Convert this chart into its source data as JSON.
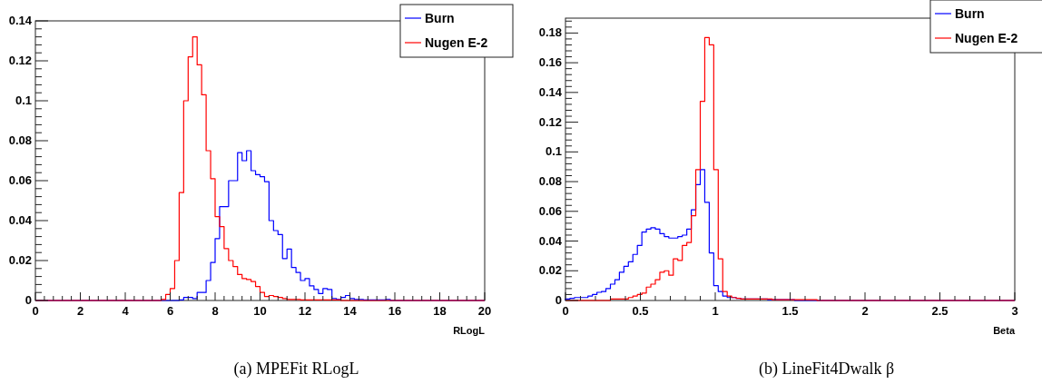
{
  "chart_data": [
    {
      "type": "histogram",
      "title": "(a)  MPEFit RLogL",
      "xlabel": "RLogL",
      "legend": "top right",
      "grid": false,
      "bins": [
        0,
        0.2,
        0.4,
        0.6,
        0.8,
        1,
        1.2,
        1.4,
        1.6,
        1.8,
        2,
        2.2,
        2.4,
        2.6,
        2.8,
        3,
        3.2,
        3.4,
        3.6,
        3.8,
        4,
        4.2,
        4.4,
        4.6,
        4.8,
        5,
        5.2,
        5.4,
        5.6,
        5.8,
        6,
        6.2,
        6.4,
        6.6,
        6.8,
        7,
        7.2,
        7.4,
        7.6,
        7.8,
        8,
        8.2,
        8.4,
        8.6,
        8.8,
        9,
        9.2,
        9.4,
        9.6,
        9.8,
        10,
        10.2,
        10.4,
        10.6,
        10.8,
        11,
        11.2,
        11.4,
        11.6,
        11.8,
        12,
        12.2,
        12.4,
        12.6,
        12.8,
        13,
        13.2,
        13.4,
        13.6,
        13.8,
        14,
        14.2,
        14.4,
        14.6,
        14.8,
        15,
        15.2,
        15.4,
        15.6,
        15.8,
        16,
        16.2,
        16.4,
        16.6,
        16.8,
        17,
        17.2,
        17.4,
        17.6,
        17.8,
        18,
        18.2,
        18.4,
        18.6,
        18.8,
        19,
        19.2,
        19.4,
        19.6,
        19.8,
        20
      ],
      "xlim": [
        0,
        20
      ],
      "xticks": [
        0,
        2,
        4,
        6,
        8,
        10,
        12,
        14,
        16,
        18,
        20
      ],
      "ylim": [
        0,
        0.14
      ],
      "yticks": [
        0,
        0.02,
        0.04,
        0.06,
        0.08,
        0.1,
        0.12,
        0.14
      ],
      "series": [
        {
          "name": "Burn",
          "color": "#0000ff",
          "values": [
            0,
            0,
            0,
            0,
            0,
            0,
            0,
            0,
            0,
            0,
            0,
            0,
            0,
            0,
            0,
            0,
            0,
            0,
            0,
            0,
            0,
            0,
            0,
            0,
            0,
            0,
            0,
            0,
            0,
            0,
            0,
            0,
            0.0003,
            0.0015,
            0.0015,
            0.001,
            0.004,
            0.004,
            0.01,
            0.019,
            0.031,
            0.047,
            0.047,
            0.06,
            0.06,
            0.074,
            0.07,
            0.075,
            0.065,
            0.063,
            0.062,
            0.0595,
            0.04,
            0.035,
            0.033,
            0.021,
            0.0257,
            0.0165,
            0.014,
            0.01,
            0.011,
            0.0073,
            0.0055,
            0.0035,
            0.006,
            0.0055,
            0.001,
            0.0005,
            0.0015,
            0.0025,
            0.001,
            0.0005,
            0.0005,
            0.0003,
            0.0003,
            0.0003,
            0.0003,
            0.0003,
            0.0005,
            0,
            0,
            0,
            0,
            0,
            0,
            0,
            0,
            0,
            0,
            0,
            0,
            0,
            0,
            0,
            0,
            0,
            0,
            0,
            0,
            0
          ]
        },
        {
          "name": "Nugen E-2",
          "color": "#ff0000",
          "values": [
            0,
            0,
            0,
            0,
            0,
            0,
            0,
            0,
            0,
            0,
            0,
            0,
            0,
            0,
            0,
            0,
            0,
            0,
            0,
            0,
            0,
            0,
            0,
            0,
            0,
            0,
            0,
            0,
            0.0005,
            0.003,
            0.006,
            0.02,
            0.054,
            0.1,
            0.122,
            0.132,
            0.118,
            0.103,
            0.075,
            0.061,
            0.042,
            0.037,
            0.026,
            0.02,
            0.017,
            0.013,
            0.011,
            0.0105,
            0.0095,
            0.007,
            0.004,
            0.002,
            0.0025,
            0.002,
            0.0015,
            0.001,
            0.0005,
            0.0005,
            0.0005,
            0.0003,
            0.0003,
            0.0003,
            0.0003,
            0.0003,
            0.0003,
            0.0003,
            0.0003,
            0.0003,
            0,
            0,
            0,
            0,
            0,
            0,
            0,
            0,
            0,
            0,
            0,
            0,
            0,
            0,
            0,
            0,
            0,
            0,
            0,
            0,
            0,
            0,
            0,
            0,
            0,
            0,
            0,
            0,
            0,
            0,
            0,
            0
          ]
        }
      ]
    },
    {
      "type": "histogram",
      "title": "(b)  LineFit4Dwalk β",
      "xlabel": "Beta",
      "legend": "top right",
      "grid": false,
      "bins": [
        0,
        0.03,
        0.06,
        0.09,
        0.12,
        0.15,
        0.18,
        0.21,
        0.24,
        0.27,
        0.3,
        0.33,
        0.36,
        0.39,
        0.42,
        0.45,
        0.48,
        0.51,
        0.54,
        0.57,
        0.6,
        0.63,
        0.66,
        0.69,
        0.72,
        0.75,
        0.78,
        0.81,
        0.84,
        0.87,
        0.9,
        0.93,
        0.96,
        0.99,
        1.02,
        1.05,
        1.08,
        1.11,
        1.14,
        1.17,
        1.2,
        1.23,
        1.26,
        1.29,
        1.32,
        1.35,
        1.38,
        1.41,
        1.44,
        1.47,
        1.5,
        1.53,
        1.56,
        1.59,
        1.62,
        1.65,
        1.68,
        1.71,
        1.74,
        1.77,
        1.8,
        1.83,
        1.86,
        1.89,
        1.92,
        1.95,
        1.98,
        2.01,
        2.04,
        2.07,
        2.1,
        2.13,
        2.16,
        2.19,
        2.22,
        2.25,
        2.28,
        2.31,
        2.34,
        2.37,
        2.4,
        2.43,
        2.46,
        2.49,
        2.52,
        2.55,
        2.58,
        2.61,
        2.64,
        2.67,
        2.7,
        2.73,
        2.76,
        2.79,
        2.82,
        2.85,
        2.88,
        2.91,
        2.94,
        2.97,
        3
      ],
      "xlim": [
        0,
        3
      ],
      "xticks": [
        0,
        0.5,
        1,
        1.5,
        2,
        2.5,
        3
      ],
      "ylim": [
        0,
        0.19
      ],
      "yticks": [
        0,
        0.02,
        0.04,
        0.06,
        0.08,
        0.1,
        0.12,
        0.14,
        0.16,
        0.18
      ],
      "series": [
        {
          "name": "Burn",
          "color": "#0000ff",
          "values": [
            0.001,
            0.0015,
            0.002,
            0.002,
            0.002,
            0.003,
            0.004,
            0.0055,
            0.006,
            0.008,
            0.011,
            0.014,
            0.019,
            0.023,
            0.026,
            0.031,
            0.037,
            0.046,
            0.048,
            0.049,
            0.048,
            0.045,
            0.043,
            0.042,
            0.042,
            0.043,
            0.044,
            0.048,
            0.061,
            0.078,
            0.088,
            0.066,
            0.032,
            0.01,
            0.006,
            0.003,
            0.002,
            0.002,
            0.0015,
            0.001,
            0.001,
            0.001,
            0.001,
            0.001,
            0.001,
            0.0005,
            0.0005,
            0.0005,
            0.0005,
            0.0005,
            0.0005,
            0,
            0,
            0,
            0,
            0,
            0,
            0,
            0,
            0,
            0,
            0,
            0,
            0,
            0,
            0,
            0,
            0,
            0,
            0,
            0,
            0,
            0,
            0,
            0,
            0,
            0,
            0,
            0,
            0,
            0,
            0,
            0,
            0,
            0,
            0,
            0,
            0,
            0,
            0,
            0,
            0,
            0,
            0,
            0,
            0,
            0,
            0,
            0,
            0
          ]
        },
        {
          "name": "Nugen E-2",
          "color": "#ff0000",
          "values": [
            0,
            0,
            0,
            0,
            0,
            0,
            0,
            0,
            0,
            0,
            0.001,
            0.001,
            0.001,
            0.001,
            0.002,
            0.003,
            0.004,
            0.005,
            0.009,
            0.011,
            0.014,
            0.019,
            0.02,
            0.017,
            0.028,
            0.027,
            0.037,
            0.039,
            0.057,
            0.088,
            0.134,
            0.177,
            0.172,
            0.088,
            0.028,
            0.006,
            0.003,
            0.002,
            0.0015,
            0.001,
            0.001,
            0.001,
            0.001,
            0.001,
            0.001,
            0.001,
            0.0005,
            0.0005,
            0.0005,
            0.0005,
            0.0005,
            0.0005,
            0.0005,
            0.0005,
            0.0005,
            0.0005,
            0,
            0,
            0,
            0,
            0,
            0,
            0,
            0,
            0,
            0,
            0,
            0,
            0,
            0,
            0,
            0,
            0,
            0,
            0,
            0,
            0,
            0,
            0,
            0,
            0,
            0,
            0,
            0,
            0,
            0,
            0,
            0,
            0,
            0,
            0,
            0,
            0,
            0,
            0,
            0,
            0,
            0,
            0,
            0
          ]
        }
      ]
    }
  ]
}
